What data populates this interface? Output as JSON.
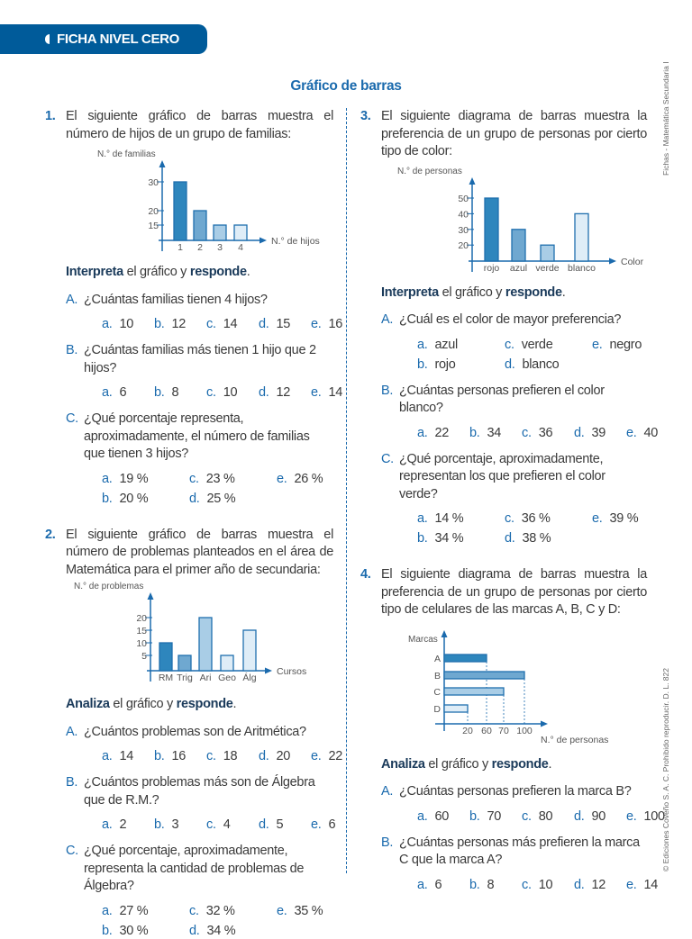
{
  "header": {
    "tab_label": "FICHA NIVEL CERO",
    "title": "Gráfico de barras"
  },
  "side_text_top": "Fichas - Matemática Secundaria I",
  "side_text_bottom": "© Ediciones Coveño S. A. C. Prohibido reproducir. D. L. 822",
  "colors": {
    "accent": "#1a6aad",
    "tab": "#005b9a",
    "bar_border": "#1f6fae",
    "bars": [
      "#2e86bd",
      "#6fa8d0",
      "#a9cde6",
      "#dfedf7",
      "#dfedf7"
    ]
  },
  "q1": {
    "number": "1.",
    "text": "El siguiente gráfico de barras muestra el número de hijos de un grupo de familias:",
    "chart_data": {
      "type": "bar",
      "ylabel": "N.° de familias",
      "xlabel": "N.° de hijos",
      "categories": [
        "1",
        "2",
        "3",
        "4"
      ],
      "values": [
        30,
        20,
        15,
        15
      ],
      "yticks": [
        "15",
        "20",
        "30"
      ],
      "ytick_values": [
        15,
        20,
        30
      ]
    },
    "instruction": {
      "verb": "Interpreta",
      "mid": " el gráfico y ",
      "verb2": "responde",
      "end": "."
    },
    "items": [
      {
        "letter": "A.",
        "text": "¿Cuántas familias tienen 4 hijos?",
        "options": [
          {
            "letter": "a.",
            "text": "10"
          },
          {
            "letter": "b.",
            "text": "12"
          },
          {
            "letter": "c.",
            "text": "14"
          },
          {
            "letter": "d.",
            "text": "15"
          },
          {
            "letter": "e.",
            "text": "16"
          }
        ]
      },
      {
        "letter": "B.",
        "text": "¿Cuántas familias más tienen 1 hijo que 2 hijos?",
        "options": [
          {
            "letter": "a.",
            "text": "6"
          },
          {
            "letter": "b.",
            "text": "8"
          },
          {
            "letter": "c.",
            "text": "10"
          },
          {
            "letter": "d.",
            "text": "12"
          },
          {
            "letter": "e.",
            "text": "14"
          }
        ]
      },
      {
        "letter": "C.",
        "text": "¿Qué porcentaje representa, aproximadamente, el número de familias que tienen 3 hijos?",
        "options": [
          {
            "letter": "a.",
            "text": "19 %"
          },
          {
            "letter": "c.",
            "text": "23 %"
          },
          {
            "letter": "e.",
            "text": "26 %"
          },
          {
            "letter": "b.",
            "text": "20 %"
          },
          {
            "letter": "d.",
            "text": "25 %"
          }
        ]
      }
    ]
  },
  "q2": {
    "number": "2.",
    "text": "El siguiente gráfico de barras muestra el número de problemas planteados en el área de Matemática para el primer año de secundaria:",
    "chart_data": {
      "type": "bar",
      "ylabel": "N.° de problemas",
      "xlabel": "Cursos",
      "categories": [
        "RM",
        "Trig",
        "Ari",
        "Geo",
        "Álg"
      ],
      "values": [
        10,
        5,
        20,
        5,
        15
      ],
      "yticks": [
        "5",
        "10",
        "15",
        "20"
      ],
      "ytick_values": [
        5,
        10,
        15,
        20
      ]
    },
    "instruction": {
      "verb": "Analiza",
      "mid": " el gráfico y ",
      "verb2": "responde",
      "end": "."
    },
    "items": [
      {
        "letter": "A.",
        "text": "¿Cuántos problemas son de Aritmética?",
        "options": [
          {
            "letter": "a.",
            "text": "14"
          },
          {
            "letter": "b.",
            "text": "16"
          },
          {
            "letter": "c.",
            "text": "18"
          },
          {
            "letter": "d.",
            "text": "20"
          },
          {
            "letter": "e.",
            "text": "22"
          }
        ]
      },
      {
        "letter": "B.",
        "text": "¿Cuántos problemas más son de Álgebra que de R.M.?",
        "options": [
          {
            "letter": "a.",
            "text": "2"
          },
          {
            "letter": "b.",
            "text": "3"
          },
          {
            "letter": "c.",
            "text": "4"
          },
          {
            "letter": "d.",
            "text": "5"
          },
          {
            "letter": "e.",
            "text": "6"
          }
        ]
      },
      {
        "letter": "C.",
        "text": "¿Qué porcentaje, aproximadamente, representa la cantidad de problemas de Álgebra?",
        "options": [
          {
            "letter": "a.",
            "text": "27 %"
          },
          {
            "letter": "c.",
            "text": "32 %"
          },
          {
            "letter": "e.",
            "text": "35 %"
          },
          {
            "letter": "b.",
            "text": "30 %"
          },
          {
            "letter": "d.",
            "text": "34 %"
          }
        ]
      }
    ]
  },
  "q3": {
    "number": "3.",
    "text": "El siguiente diagrama de barras muestra la preferencia de un grupo de personas por cierto tipo de color:",
    "chart_data": {
      "type": "bar",
      "ylabel": "N.° de personas",
      "xlabel": "Color",
      "categories": [
        "rojo",
        "azul",
        "verde",
        "blanco"
      ],
      "values": [
        50,
        30,
        20,
        40
      ],
      "yticks": [
        "20",
        "30",
        "40",
        "50"
      ],
      "ytick_values": [
        20,
        30,
        40,
        50
      ]
    },
    "instruction": {
      "verb": "Interpreta",
      "mid": " el gráfico y ",
      "verb2": "responde",
      "end": "."
    },
    "items": [
      {
        "letter": "A.",
        "text": "¿Cuál es el color de mayor preferencia?",
        "options": [
          {
            "letter": "a.",
            "text": "azul"
          },
          {
            "letter": "c.",
            "text": "verde"
          },
          {
            "letter": "e.",
            "text": "negro"
          },
          {
            "letter": "b.",
            "text": "rojo"
          },
          {
            "letter": "d.",
            "text": "blanco"
          }
        ]
      },
      {
        "letter": "B.",
        "text": "¿Cuántas personas prefieren el color blanco?",
        "options": [
          {
            "letter": "a.",
            "text": "22"
          },
          {
            "letter": "b.",
            "text": "34"
          },
          {
            "letter": "c.",
            "text": "36"
          },
          {
            "letter": "d.",
            "text": "39"
          },
          {
            "letter": "e.",
            "text": "40"
          }
        ]
      },
      {
        "letter": "C.",
        "text": "¿Qué porcentaje, aproximadamente, representan los que prefieren el color verde?",
        "options": [
          {
            "letter": "a.",
            "text": "14 %"
          },
          {
            "letter": "c.",
            "text": "36 %"
          },
          {
            "letter": "e.",
            "text": "39 %"
          },
          {
            "letter": "b.",
            "text": "34 %"
          },
          {
            "letter": "d.",
            "text": "38 %"
          }
        ]
      }
    ]
  },
  "q4": {
    "number": "4.",
    "text": "El siguiente diagrama de barras muestra la preferencia de un grupo de personas por cierto tipo de celulares de las marcas A, B, C y D:",
    "chart_data": {
      "type": "bar",
      "orientation": "horizontal",
      "ylabel": "Marcas",
      "xlabel": "N.° de personas",
      "categories": [
        "A",
        "B",
        "C",
        "D"
      ],
      "values": [
        60,
        100,
        70,
        20
      ],
      "xticks": [
        "20",
        "60",
        "70",
        "100"
      ],
      "xtick_values": [
        20,
        60,
        70,
        100
      ]
    },
    "instruction": {
      "verb": "Analiza",
      "mid": " el gráfico y ",
      "verb2": "responde",
      "end": "."
    },
    "items": [
      {
        "letter": "A.",
        "text": "¿Cuántas personas prefieren la marca B?",
        "options": [
          {
            "letter": "a.",
            "text": "60"
          },
          {
            "letter": "b.",
            "text": "70"
          },
          {
            "letter": "c.",
            "text": "80"
          },
          {
            "letter": "d.",
            "text": "90"
          },
          {
            "letter": "e.",
            "text": "100"
          }
        ]
      },
      {
        "letter": "B.",
        "text": "¿Cuántas personas más prefieren la marca C que la marca A?",
        "options": [
          {
            "letter": "a.",
            "text": "6"
          },
          {
            "letter": "b.",
            "text": "8"
          },
          {
            "letter": "c.",
            "text": "10"
          },
          {
            "letter": "d.",
            "text": "12"
          },
          {
            "letter": "e.",
            "text": "14"
          }
        ]
      }
    ]
  }
}
